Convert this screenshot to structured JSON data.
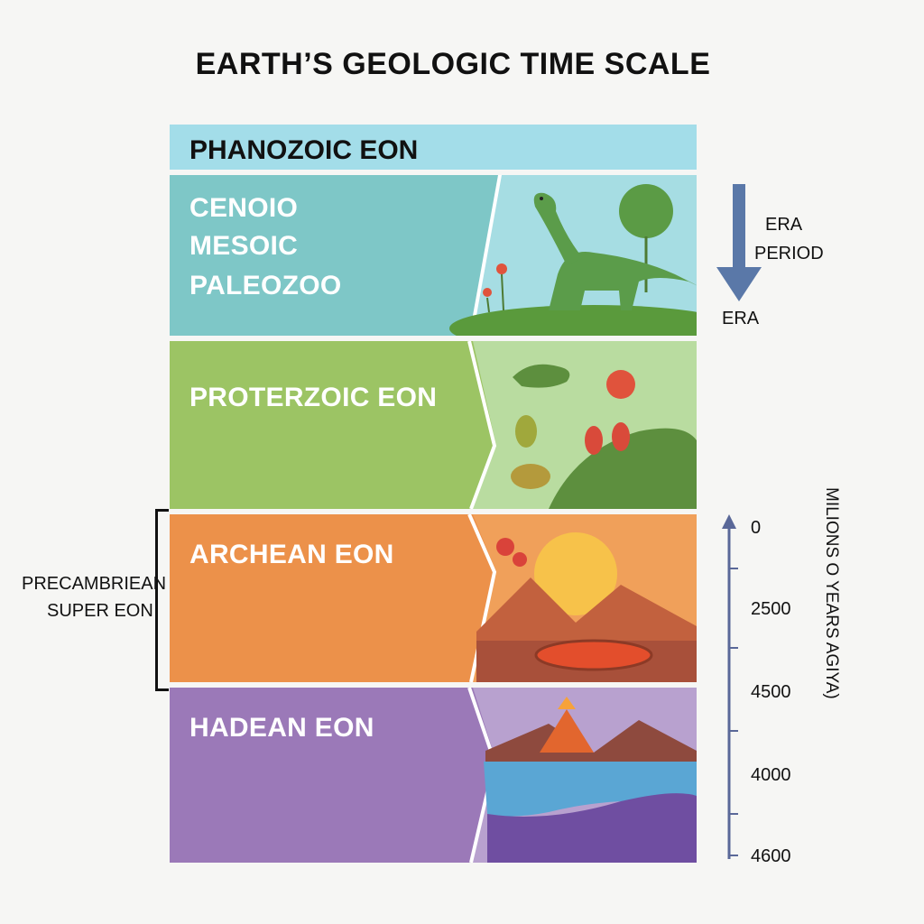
{
  "title": "EARTH’S GEOLOGIC TIME SCALE",
  "header": {
    "label": "PHANOZOIC EON",
    "color": "#a3dde9"
  },
  "bands": [
    {
      "lines": [
        "CENOIO",
        "MESOIC",
        "PALEOZOO"
      ],
      "color": "#7ec7c7"
    },
    {
      "label": "PROTERZOIC EON",
      "color": "#9cc464"
    },
    {
      "label": "ARCHEAN EON",
      "color": "#ec914a"
    },
    {
      "label": "HADEAN EON",
      "color": "#9b79b8"
    }
  ],
  "legend": {
    "era_top": "ERA",
    "period": "PERIOD",
    "era_bottom": "ERA"
  },
  "precambrian": {
    "line1": "PRECAMBRIEAN",
    "line2": "SUPER EON"
  },
  "scale": {
    "title": "MILIONS O YEARS AGIYA)",
    "ticks": [
      "0",
      "2500",
      "4500",
      "4000",
      "4600"
    ]
  }
}
